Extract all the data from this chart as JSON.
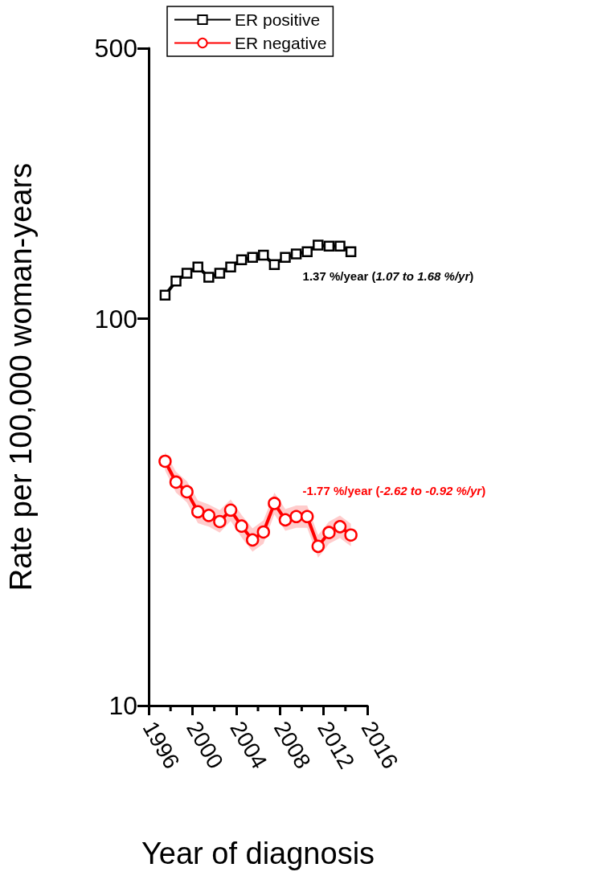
{
  "chart_data": {
    "type": "line",
    "xlabel": "Year of diagnosis",
    "ylabel": "Rate per 100,000 woman-years",
    "x": [
      1997.5,
      1998.5,
      1999.5,
      2000.5,
      2001.5,
      2002.5,
      2003.5,
      2004.5,
      2005.5,
      2006.5,
      2007.5,
      2008.5,
      2009.5,
      2010.5,
      2011.5,
      2012.5,
      2013.5,
      2014.5
    ],
    "series": [
      {
        "name": "ER positive",
        "color": "#000000",
        "marker": "square",
        "values": [
          115,
          125,
          131,
          136,
          128,
          131,
          136,
          142,
          144,
          146,
          138,
          144,
          147,
          149,
          155,
          154,
          154,
          149
        ]
      },
      {
        "name": "ER negative",
        "color": "#ff0000",
        "marker": "circle",
        "values": [
          42.8,
          37.8,
          35.7,
          31.7,
          31.0,
          29.9,
          32.0,
          29.1,
          26.8,
          28.1,
          33.3,
          30.2,
          30.8,
          30.8,
          25.8,
          28.0,
          29.0,
          27.6
        ],
        "lower": [
          40.5,
          35.5,
          33.5,
          29.6,
          29.0,
          28.0,
          30.0,
          27.2,
          25.0,
          26.2,
          31.2,
          28.3,
          28.8,
          28.8,
          24.1,
          26.2,
          27.1,
          25.8
        ],
        "upper": [
          45.2,
          40.2,
          38.0,
          33.9,
          33.1,
          32.0,
          34.1,
          31.1,
          28.7,
          30.1,
          35.5,
          32.2,
          32.9,
          32.9,
          27.6,
          29.9,
          31.0,
          29.5
        ]
      }
    ],
    "annotations": [
      "1.37 %/year (1.07 to 1.68 %/yr)",
      "-1.77 %/year (-2.62 to -0.92 %/yr)"
    ],
    "log": "y",
    "xlim": [
      1996,
      2016
    ],
    "xticks": [
      1996,
      2000,
      2004,
      2008,
      2012,
      2016
    ],
    "ylim": [
      10,
      500
    ],
    "yticks": [
      10,
      100,
      500
    ],
    "grid": false,
    "legend": "top",
    "line_style": "solid"
  }
}
